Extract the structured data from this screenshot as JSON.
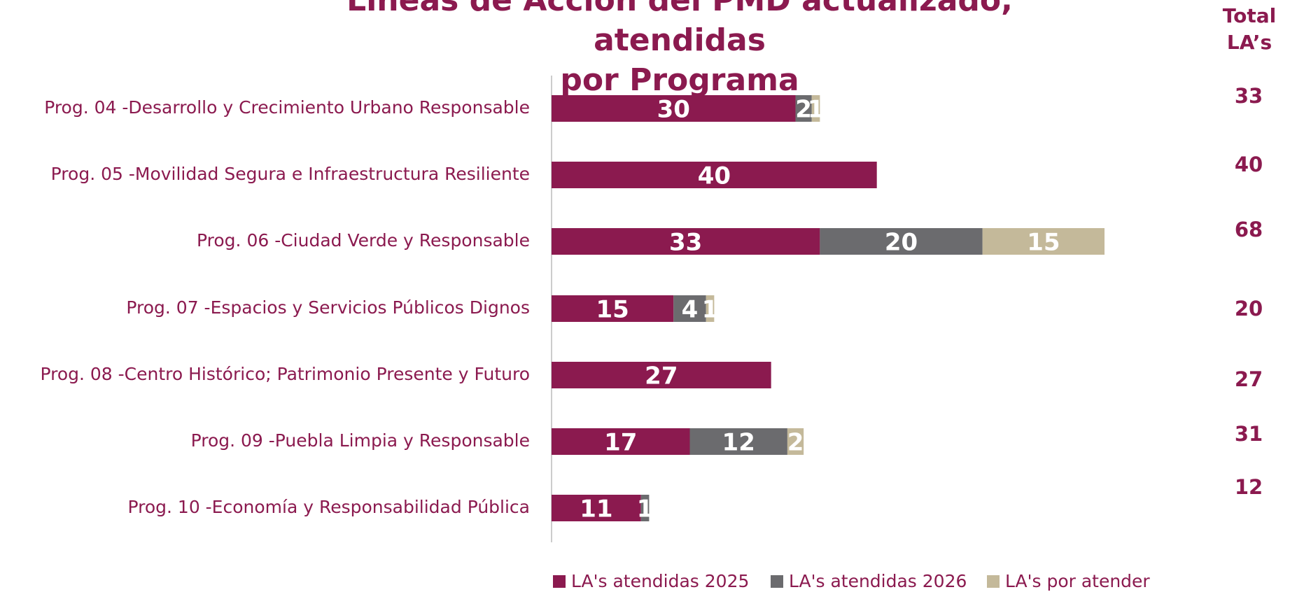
{
  "chart_data": {
    "type": "bar",
    "orientation": "horizontal",
    "stacked": true,
    "title": "Líneas de Acción del PMD actualizado, atendidas\npor Programa",
    "categories": [
      "Prog. 04 -Desarrollo y Crecimiento Urbano Responsable",
      "Prog. 05 -Movilidad Segura e Infraestructura Resiliente",
      "Prog. 06 -Ciudad Verde y Responsable",
      "Prog. 07 -Espacios y Servicios Públicos Dignos",
      "Prog. 08 -Centro Histórico; Patrimonio Presente y Futuro",
      "Prog. 09 -Puebla Limpia y Responsable",
      "Prog. 10 -Economía y Responsabilidad Pública"
    ],
    "series": [
      {
        "name": "LA's atendidas 2025",
        "color": "#8b1a4f",
        "values": [
          30,
          40,
          33,
          15,
          27,
          17,
          11
        ]
      },
      {
        "name": "LA's atendidas 2026",
        "color": "#6b6b6e",
        "values": [
          2,
          0,
          20,
          4,
          0,
          12,
          1
        ]
      },
      {
        "name": "LA's por atender",
        "color": "#c4b99a",
        "values": [
          1,
          0,
          15,
          1,
          0,
          2,
          0
        ]
      }
    ],
    "totals_header": "Total\nLA’s",
    "totals": [
      33,
      40,
      68,
      20,
      27,
      31,
      12
    ]
  }
}
